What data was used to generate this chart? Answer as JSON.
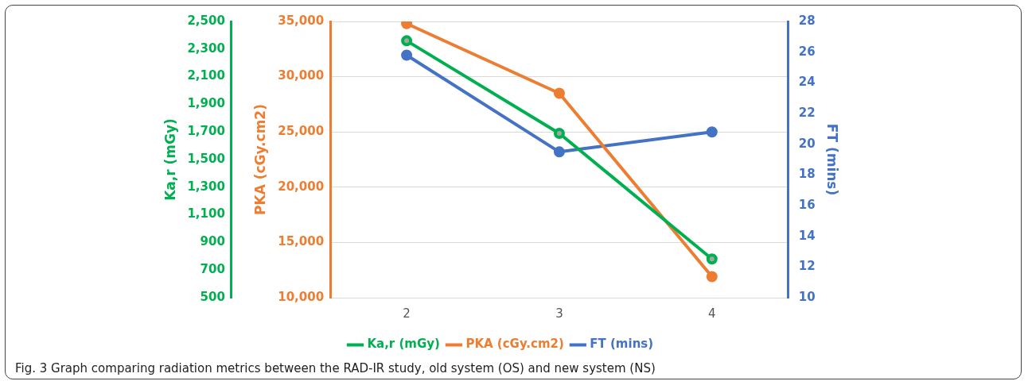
{
  "chart_data": {
    "type": "line",
    "categories": [
      "2",
      "3",
      "4"
    ],
    "series": [
      {
        "name": "Ka,r (mGy)",
        "color": "#00b050",
        "values": [
          2360,
          1690,
          780
        ],
        "axis": "y"
      },
      {
        "name": "PKA (cGy.cm2)",
        "color": "#ed7d31",
        "values": [
          34800,
          28500,
          11900
        ],
        "axis": "y2"
      },
      {
        "name": "FT (mins)",
        "color": "#4472c4",
        "values": [
          25.8,
          19.5,
          20.8
        ],
        "axis": "y3"
      }
    ],
    "ylabel": "Ka,r (mGy)",
    "y2label": "PKA (cGy.cm2)",
    "y3label": "FT (mins)",
    "ylim": [
      500,
      2500
    ],
    "yticks": [
      500,
      700,
      900,
      {
        "value": 1100,
        "label": "1,100"
      },
      {
        "value": 1300,
        "label": "1,300"
      },
      {
        "value": 1500,
        "label": "1,500"
      },
      {
        "value": 1700,
        "label": "1,700"
      },
      {
        "value": 1900,
        "label": "1,900"
      },
      {
        "value": 2100,
        "label": "2,100"
      },
      {
        "value": 2300,
        "label": "2,300"
      },
      {
        "value": 2500,
        "label": "2,500"
      }
    ],
    "y2lim": [
      10000,
      35000
    ],
    "y2ticks": [
      {
        "value": 10000,
        "label": "10,000"
      },
      {
        "value": 15000,
        "label": "15,000"
      },
      {
        "value": 20000,
        "label": "20,000"
      },
      {
        "value": 25000,
        "label": "25,000"
      },
      {
        "value": 30000,
        "label": "30,000"
      },
      {
        "value": 35000,
        "label": "35,000"
      }
    ],
    "y3lim": [
      10,
      28
    ],
    "y3ticks": [
      10,
      12,
      14,
      16,
      18,
      20,
      22,
      24,
      26,
      28
    ],
    "grid": "y2",
    "legend": "bottom",
    "marker": "circle",
    "line_style": "solid",
    "annotations": [
      "Fig. 3 Graph comparing radiation metrics between the RAD-IR study, old system (OS) and new system (NS)"
    ]
  }
}
